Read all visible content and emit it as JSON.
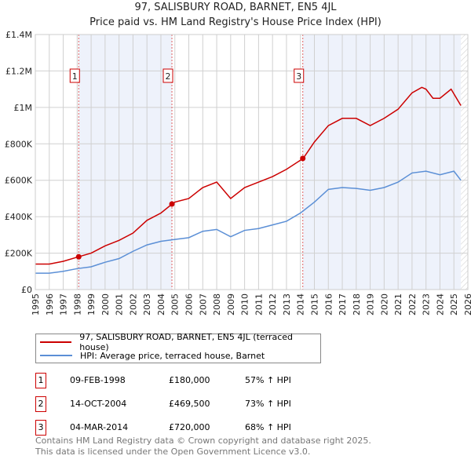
{
  "chart_data": {
    "type": "line",
    "title": "97, SALISBURY ROAD, BARNET, EN5 4JL",
    "subtitle": "Price paid vs. HM Land Registry's House Price Index (HPI)",
    "xlim": [
      1995,
      2026
    ],
    "ylim": [
      0,
      1400000
    ],
    "x_ticks": [
      "1995",
      "1996",
      "1997",
      "1998",
      "1999",
      "2000",
      "2001",
      "2002",
      "2003",
      "2004",
      "2005",
      "2006",
      "2007",
      "2008",
      "2009",
      "2010",
      "2011",
      "2012",
      "2013",
      "2014",
      "2015",
      "2016",
      "2017",
      "2018",
      "2019",
      "2020",
      "2021",
      "2022",
      "2023",
      "2024",
      "2025",
      "2026"
    ],
    "y_ticks": [
      {
        "v": 0,
        "label": "£0"
      },
      {
        "v": 200000,
        "label": "£200K"
      },
      {
        "v": 400000,
        "label": "£400K"
      },
      {
        "v": 600000,
        "label": "£600K"
      },
      {
        "v": 800000,
        "label": "£800K"
      },
      {
        "v": 1000000,
        "label": "£1M"
      },
      {
        "v": 1200000,
        "label": "£1.2M"
      },
      {
        "v": 1400000,
        "label": "£1.4M"
      }
    ],
    "series": [
      {
        "name": "97, SALISBURY ROAD, BARNET, EN5 4JL (terraced house)",
        "color": "#cc0000",
        "x": [
          1995,
          1996,
          1997,
          1998.1,
          1999,
          2000,
          2001,
          2002,
          2003,
          2004,
          2004.8,
          2005,
          2006,
          2007,
          2008,
          2009,
          2010,
          2011,
          2012,
          2013,
          2014.2,
          2015,
          2016,
          2017,
          2018,
          2019,
          2020,
          2021,
          2022,
          2022.7,
          2023,
          2023.5,
          2024,
          2024.8,
          2025.5
        ],
        "y": [
          140000,
          140000,
          155000,
          180000,
          200000,
          240000,
          270000,
          310000,
          380000,
          420000,
          469500,
          480000,
          500000,
          560000,
          590000,
          500000,
          560000,
          590000,
          620000,
          660000,
          720000,
          810000,
          900000,
          940000,
          940000,
          900000,
          940000,
          990000,
          1080000,
          1110000,
          1100000,
          1050000,
          1050000,
          1100000,
          1010000
        ]
      },
      {
        "name": "HPI: Average price, terraced house, Barnet",
        "color": "#5b8fd6",
        "x": [
          1995,
          1996,
          1997,
          1998,
          1999,
          2000,
          2001,
          2002,
          2003,
          2004,
          2005,
          2006,
          2007,
          2008,
          2009,
          2010,
          2011,
          2012,
          2013,
          2014,
          2015,
          2016,
          2017,
          2018,
          2019,
          2020,
          2021,
          2022,
          2023,
          2024,
          2025,
          2025.5
        ],
        "y": [
          90000,
          90000,
          100000,
          115000,
          125000,
          150000,
          170000,
          210000,
          245000,
          265000,
          275000,
          285000,
          320000,
          330000,
          290000,
          325000,
          335000,
          355000,
          375000,
          420000,
          480000,
          550000,
          560000,
          555000,
          545000,
          560000,
          590000,
          640000,
          650000,
          630000,
          650000,
          600000
        ]
      }
    ],
    "sales": [
      {
        "label": "1",
        "x": 1998.11,
        "y": 180000,
        "date": "09-FEB-1998",
        "price": "£180,000",
        "hpi": "57% ↑ HPI"
      },
      {
        "label": "2",
        "x": 2004.79,
        "y": 469500,
        "date": "14-OCT-2004",
        "price": "£469,500",
        "hpi": "73% ↑ HPI"
      },
      {
        "label": "3",
        "x": 2014.17,
        "y": 720000,
        "date": "04-MAR-2014",
        "price": "£720,000",
        "hpi": "68% ↑ HPI"
      }
    ],
    "data_end": 2025.5
  },
  "footer": [
    "Contains HM Land Registry data © Crown copyright and database right 2025.",
    "This data is licensed under the Open Government Licence v3.0."
  ]
}
